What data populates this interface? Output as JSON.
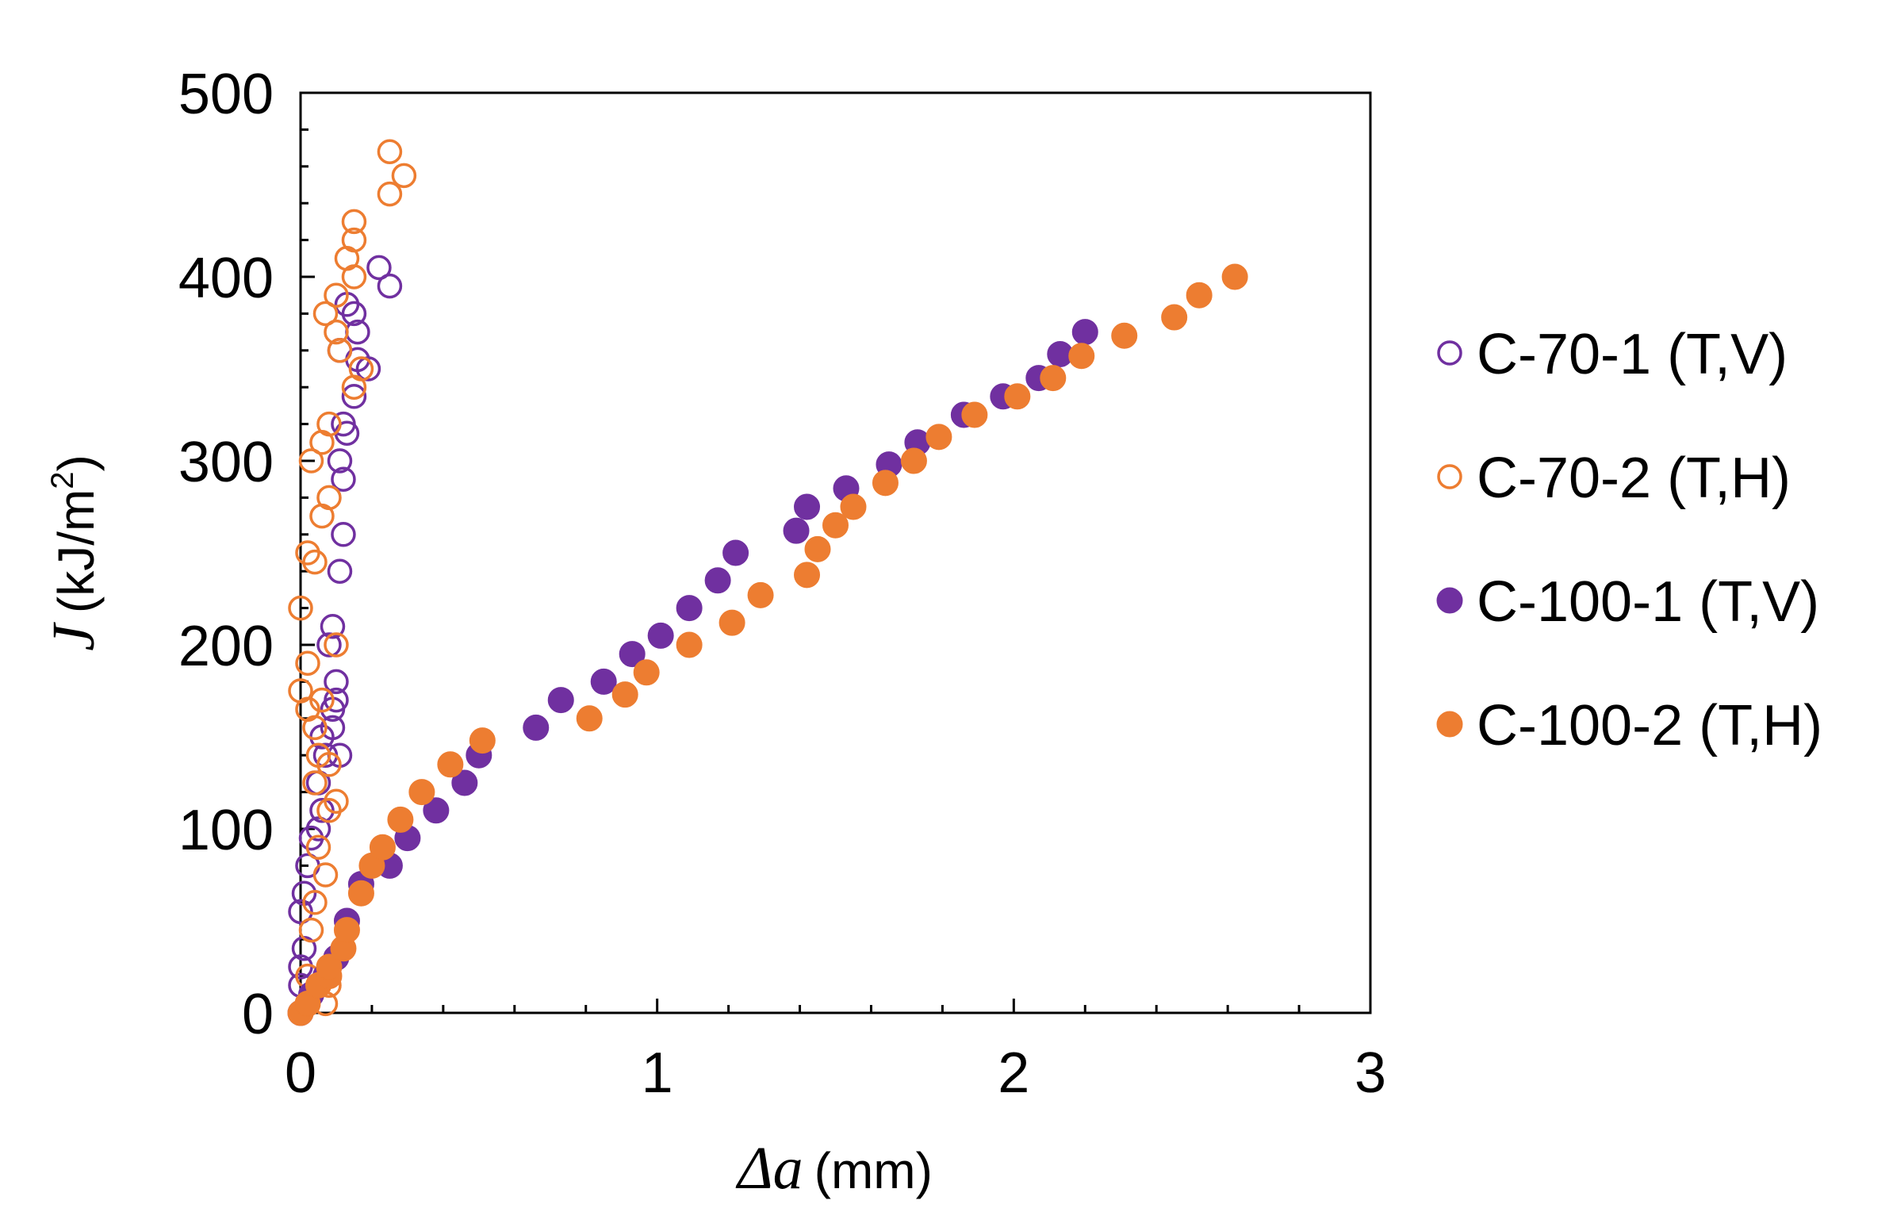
{
  "chart_data": {
    "type": "scatter",
    "title": "",
    "xlabel": {
      "symbol": "Δa",
      "unit": "(mm)"
    },
    "ylabel": {
      "symbol": "J",
      "unit_prefix": "(kJ/m",
      "unit_exp": "2",
      "unit_suffix": ")"
    },
    "xlim": [
      0,
      3
    ],
    "ylim": [
      0,
      500
    ],
    "xticks": [
      0,
      1,
      2,
      3
    ],
    "xtick_labels": [
      "0",
      "1",
      "2",
      "3"
    ],
    "yticks": [
      0,
      100,
      200,
      300,
      400,
      500
    ],
    "ytick_labels": [
      "0",
      "100",
      "200",
      "300",
      "400",
      "500"
    ],
    "grid": false,
    "legend_position": "right",
    "series": [
      {
        "name": "C-70-1 (T,V)",
        "marker": "open-circle",
        "color": "#7030A0",
        "points": [
          [
            0.0,
            15
          ],
          [
            0.0,
            25
          ],
          [
            0.01,
            35
          ],
          [
            0.0,
            55
          ],
          [
            0.01,
            65
          ],
          [
            0.02,
            80
          ],
          [
            0.03,
            95
          ],
          [
            0.05,
            100
          ],
          [
            0.06,
            110
          ],
          [
            0.05,
            125
          ],
          [
            0.07,
            140
          ],
          [
            0.06,
            150
          ],
          [
            0.09,
            155
          ],
          [
            0.09,
            165
          ],
          [
            0.1,
            170
          ],
          [
            0.11,
            140
          ],
          [
            0.1,
            180
          ],
          [
            0.08,
            200
          ],
          [
            0.09,
            210
          ],
          [
            0.11,
            240
          ],
          [
            0.12,
            260
          ],
          [
            0.12,
            290
          ],
          [
            0.11,
            300
          ],
          [
            0.13,
            315
          ],
          [
            0.12,
            320
          ],
          [
            0.15,
            335
          ],
          [
            0.19,
            350
          ],
          [
            0.16,
            355
          ],
          [
            0.11,
            360
          ],
          [
            0.16,
            370
          ],
          [
            0.15,
            380
          ],
          [
            0.13,
            385
          ],
          [
            0.25,
            395
          ],
          [
            0.22,
            405
          ]
        ]
      },
      {
        "name": "C-70-2 (T,H)",
        "marker": "open-circle",
        "color": "#ED7D31",
        "points": [
          [
            0.0,
            0
          ],
          [
            0.02,
            20
          ],
          [
            0.07,
            5
          ],
          [
            0.08,
            15
          ],
          [
            0.03,
            45
          ],
          [
            0.04,
            60
          ],
          [
            0.07,
            75
          ],
          [
            0.05,
            90
          ],
          [
            0.08,
            110
          ],
          [
            0.1,
            115
          ],
          [
            0.04,
            125
          ],
          [
            0.08,
            135
          ],
          [
            0.05,
            140
          ],
          [
            0.04,
            155
          ],
          [
            0.02,
            165
          ],
          [
            0.0,
            175
          ],
          [
            0.06,
            170
          ],
          [
            0.02,
            190
          ],
          [
            0.1,
            200
          ],
          [
            0.0,
            220
          ],
          [
            0.04,
            245
          ],
          [
            0.02,
            250
          ],
          [
            0.06,
            270
          ],
          [
            0.08,
            280
          ],
          [
            0.03,
            300
          ],
          [
            0.06,
            310
          ],
          [
            0.08,
            320
          ],
          [
            0.15,
            340
          ],
          [
            0.17,
            350
          ],
          [
            0.11,
            360
          ],
          [
            0.1,
            370
          ],
          [
            0.07,
            380
          ],
          [
            0.1,
            390
          ],
          [
            0.15,
            400
          ],
          [
            0.13,
            410
          ],
          [
            0.15,
            420
          ],
          [
            0.15,
            430
          ],
          [
            0.25,
            445
          ],
          [
            0.29,
            455
          ],
          [
            0.25,
            468
          ]
        ]
      },
      {
        "name": "C-100-1 (T,V)",
        "marker": "filled-circle",
        "color": "#7030A0",
        "points": [
          [
            0.0,
            0
          ],
          [
            0.03,
            10
          ],
          [
            0.07,
            20
          ],
          [
            0.1,
            30
          ],
          [
            0.13,
            50
          ],
          [
            0.17,
            70
          ],
          [
            0.25,
            80
          ],
          [
            0.3,
            95
          ],
          [
            0.38,
            110
          ],
          [
            0.46,
            125
          ],
          [
            0.5,
            140
          ],
          [
            0.66,
            155
          ],
          [
            0.73,
            170
          ],
          [
            0.85,
            180
          ],
          [
            0.93,
            195
          ],
          [
            1.01,
            205
          ],
          [
            1.09,
            220
          ],
          [
            1.17,
            235
          ],
          [
            1.22,
            250
          ],
          [
            1.39,
            262
          ],
          [
            1.42,
            275
          ],
          [
            1.53,
            285
          ],
          [
            1.65,
            298
          ],
          [
            1.73,
            310
          ],
          [
            1.86,
            325
          ],
          [
            1.97,
            335
          ],
          [
            2.07,
            345
          ],
          [
            2.13,
            358
          ],
          [
            2.2,
            370
          ]
        ]
      },
      {
        "name": "C-100-2 (T,H)",
        "marker": "filled-circle",
        "color": "#ED7D31",
        "points": [
          [
            0.0,
            0
          ],
          [
            0.02,
            5
          ],
          [
            0.05,
            15
          ],
          [
            0.08,
            20
          ],
          [
            0.08,
            25
          ],
          [
            0.12,
            35
          ],
          [
            0.13,
            45
          ],
          [
            0.17,
            65
          ],
          [
            0.2,
            80
          ],
          [
            0.23,
            90
          ],
          [
            0.28,
            105
          ],
          [
            0.34,
            120
          ],
          [
            0.42,
            135
          ],
          [
            0.51,
            148
          ],
          [
            0.81,
            160
          ],
          [
            0.91,
            173
          ],
          [
            0.97,
            185
          ],
          [
            1.09,
            200
          ],
          [
            1.21,
            212
          ],
          [
            1.29,
            227
          ],
          [
            1.42,
            238
          ],
          [
            1.45,
            252
          ],
          [
            1.5,
            265
          ],
          [
            1.55,
            275
          ],
          [
            1.64,
            288
          ],
          [
            1.72,
            300
          ],
          [
            1.79,
            313
          ],
          [
            1.89,
            325
          ],
          [
            2.01,
            335
          ],
          [
            2.11,
            345
          ],
          [
            2.19,
            357
          ],
          [
            2.31,
            368
          ],
          [
            2.45,
            378
          ],
          [
            2.52,
            390
          ],
          [
            2.62,
            400
          ]
        ]
      }
    ]
  }
}
